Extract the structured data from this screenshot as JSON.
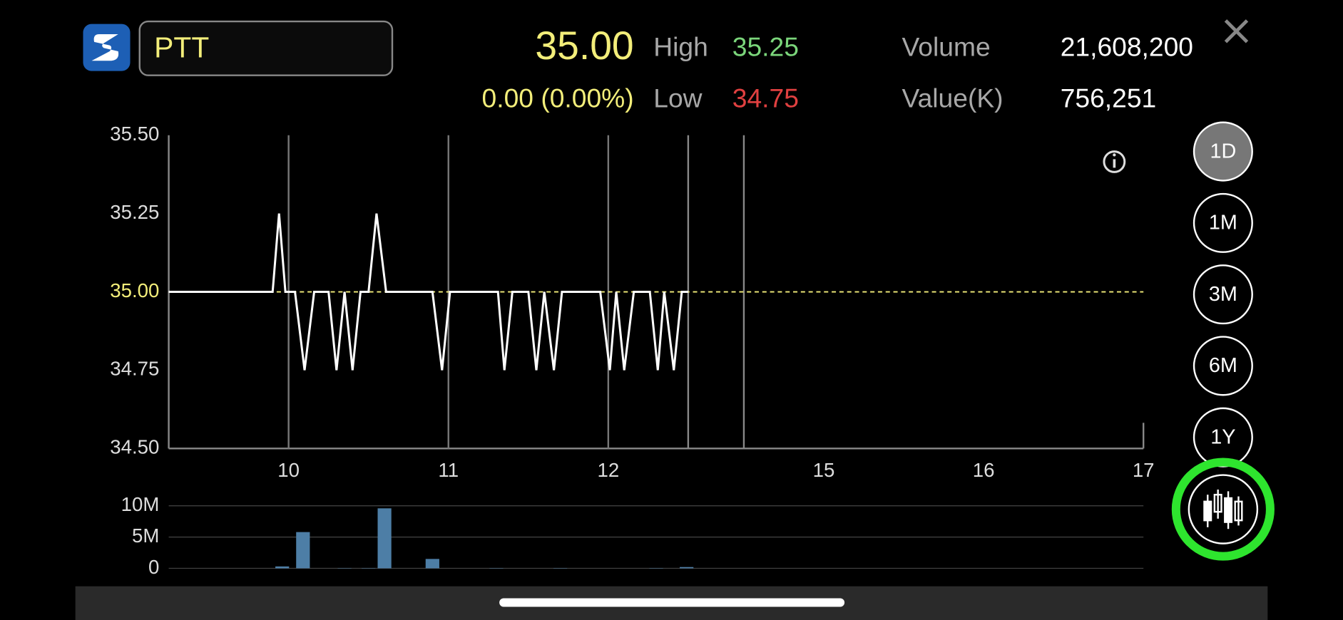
{
  "header": {
    "symbol": "PTT",
    "price": "35.00",
    "change": "0.00 (0.00%)",
    "high_label": "High",
    "high": "35.25",
    "low_label": "Low",
    "low": "34.75",
    "volume_label": "Volume",
    "volume": "21,608,200",
    "value_label": "Value(K)",
    "value": "756,251"
  },
  "range_buttons": [
    "1D",
    "1M",
    "3M",
    "6M",
    "1Y"
  ],
  "chart_data": [
    {
      "type": "line",
      "x": [
        9.25,
        9.9,
        9.94,
        9.98,
        10.04,
        10.1,
        10.16,
        10.25,
        10.3,
        10.35,
        10.4,
        10.45,
        10.5,
        10.55,
        10.61,
        10.9,
        10.96,
        11.01,
        11.31,
        11.35,
        11.4,
        11.5,
        11.55,
        11.6,
        11.66,
        11.71,
        11.95,
        12.01,
        12.05,
        12.1,
        12.16,
        12.26,
        12.31,
        12.35,
        12.41,
        12.46,
        12.5
      ],
      "series": [
        {
          "color": "#ffffff",
          "values": [
            35,
            35,
            35.25,
            35,
            35,
            34.75,
            35,
            35,
            34.75,
            35,
            34.75,
            35,
            35,
            35.25,
            35,
            35,
            34.75,
            35,
            35,
            34.75,
            35,
            35,
            34.75,
            35,
            34.75,
            35,
            35,
            34.75,
            35,
            34.75,
            35,
            35,
            34.75,
            35,
            34.75,
            35,
            35
          ]
        }
      ],
      "reference_line": {
        "value": 35,
        "color": "#f3ee7a"
      },
      "xlim": [
        9.25,
        17
      ],
      "xbreak": [
        12.5,
        14.5
      ],
      "xticks": [
        10,
        11,
        12,
        15,
        16,
        17
      ],
      "ylim": [
        34.5,
        35.5
      ],
      "yticks": [
        {
          "value": 34.5,
          "label": "34.50"
        },
        {
          "value": 34.75,
          "label": "34.75"
        },
        {
          "value": 35,
          "label": "35.00"
        },
        {
          "value": 35.25,
          "label": "35.25"
        },
        {
          "value": 35.5,
          "label": "35.50"
        }
      ]
    },
    {
      "type": "bar",
      "color": "#4d7ea6",
      "x": [
        9.96,
        10.09,
        10.35,
        10.5,
        10.6,
        10.9,
        11.3,
        11.7,
        12.3,
        12.49
      ],
      "values": [
        300000,
        5800000,
        50000,
        50000,
        9600000,
        1500000,
        50000,
        50000,
        50000,
        200000
      ],
      "xlim": [
        9.25,
        17
      ],
      "xbreak": [
        12.5,
        14.5
      ],
      "ylim": [
        0,
        10000000
      ],
      "yticks": [
        {
          "value": 0,
          "label": "0"
        },
        {
          "value": 5000000,
          "label": "5M"
        },
        {
          "value": 10000000,
          "label": "10M"
        }
      ]
    }
  ]
}
